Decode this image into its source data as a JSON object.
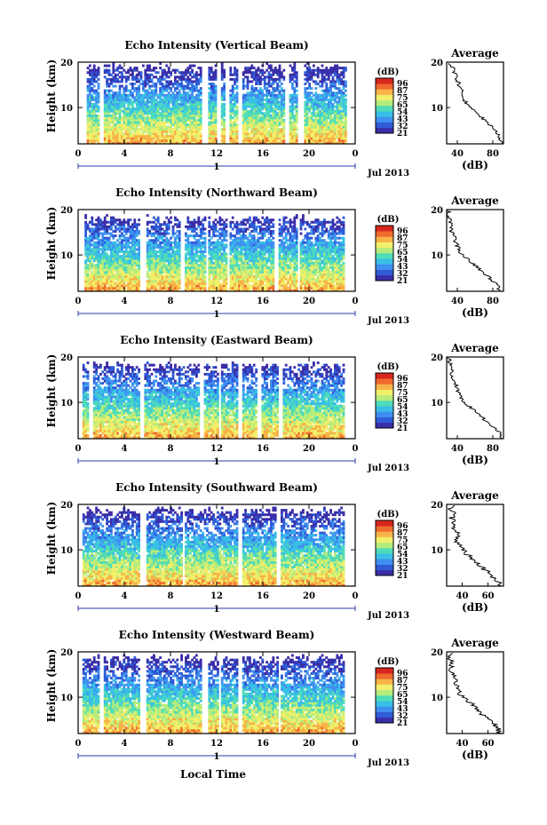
{
  "colormap": [
    "#3a2ea8",
    "#2f5bd6",
    "#3f8ff0",
    "#39bfe6",
    "#4fdcb8",
    "#b6ec7c",
    "#f2ef6a",
    "#f7b347",
    "#ef6a2e",
    "#d7261e"
  ],
  "chart_data": [
    {
      "type": "heatmap",
      "title": "Echo Intensity (Vertical Beam)",
      "ylabel": "Height (km)",
      "xlabel": "",
      "x_ticks": [
        "0",
        "4",
        "8",
        "12",
        "16",
        "20",
        "0"
      ],
      "xlim": [
        0,
        24
      ],
      "y_ticks": [
        "20",
        "10"
      ],
      "ylim": [
        2,
        20
      ],
      "date_marker": "1",
      "date_label": "Jul 2013",
      "colorbar": {
        "unit": "(dB)",
        "levels": [
          "96",
          "87",
          "75",
          "65",
          "54",
          "43",
          "32",
          "21"
        ]
      },
      "gaps": [
        [
          0,
          0.7
        ],
        [
          1.8,
          2.3
        ],
        [
          10.7,
          11.2
        ],
        [
          12.0,
          12.4
        ],
        [
          12.8,
          13.2
        ],
        [
          13.9,
          14.3
        ],
        [
          17.9,
          18.3
        ],
        [
          19.1,
          19.5
        ],
        [
          23.2,
          24
        ]
      ],
      "top": 20,
      "profile": {
        "title": "Average",
        "xlabel": "(dB)",
        "x_ticks": [
          "40",
          "80"
        ],
        "y_ticks": [
          "20",
          "10"
        ],
        "xlim": [
          28,
          92
        ],
        "ylim": [
          2,
          20
        ],
        "heights": [
          2,
          3,
          4,
          5,
          6,
          7,
          8,
          9,
          10,
          11,
          12,
          13,
          14,
          15,
          16,
          17,
          18,
          19,
          20
        ],
        "values": [
          90,
          88,
          86,
          82,
          78,
          72,
          66,
          60,
          54,
          50,
          47,
          46,
          44,
          42,
          40,
          38,
          36,
          34,
          32
        ]
      }
    },
    {
      "type": "heatmap",
      "title": "Echo Intensity (Northward Beam)",
      "ylabel": "Height (km)",
      "xlabel": "",
      "x_ticks": [
        "0",
        "4",
        "8",
        "12",
        "16",
        "20",
        "0"
      ],
      "xlim": [
        0,
        24
      ],
      "y_ticks": [
        "20",
        "10"
      ],
      "ylim": [
        2,
        20
      ],
      "date_marker": "1",
      "date_label": "Jul 2013",
      "colorbar": {
        "unit": "(dB)",
        "levels": [
          "96",
          "87",
          "75",
          "65",
          "54",
          "43",
          "32",
          "21"
        ]
      },
      "gaps": [
        [
          0,
          0.5
        ],
        [
          5.3,
          5.9
        ],
        [
          8.9,
          9.2
        ],
        [
          11.0,
          11.3
        ],
        [
          12.9,
          13.2
        ],
        [
          17.0,
          17.3
        ],
        [
          19.0,
          19.2
        ],
        [
          23.0,
          24
        ]
      ],
      "top": 19,
      "profile": {
        "title": "Average",
        "xlabel": "(dB)",
        "x_ticks": [
          "40",
          "80"
        ],
        "y_ticks": [
          "20",
          "10"
        ],
        "xlim": [
          28,
          92
        ],
        "ylim": [
          2,
          20
        ],
        "heights": [
          2,
          3,
          4,
          5,
          6,
          7,
          8,
          9,
          10,
          11,
          12,
          13,
          14,
          15,
          16,
          17,
          18,
          19,
          20
        ],
        "values": [
          88,
          86,
          82,
          76,
          70,
          64,
          58,
          52,
          46,
          42,
          40,
          38,
          36,
          34,
          33,
          32,
          31,
          30,
          30
        ]
      }
    },
    {
      "type": "heatmap",
      "title": "Echo Intensity (Eastward Beam)",
      "ylabel": "Height (km)",
      "xlabel": "",
      "x_ticks": [
        "0",
        "4",
        "8",
        "12",
        "16",
        "20",
        "0"
      ],
      "xlim": [
        0,
        24
      ],
      "y_ticks": [
        "20",
        "10"
      ],
      "ylim": [
        2,
        20
      ],
      "date_marker": "1",
      "date_label": "Jul 2013",
      "colorbar": {
        "unit": "(dB)",
        "levels": [
          "96",
          "87",
          "75",
          "65",
          "54",
          "43",
          "32",
          "21"
        ]
      },
      "gaps": [
        [
          0,
          0.4
        ],
        [
          1.0,
          1.3
        ],
        [
          5.3,
          5.8
        ],
        [
          10.5,
          10.9
        ],
        [
          12.1,
          12.4
        ],
        [
          13.9,
          14.2
        ],
        [
          15.5,
          15.8
        ],
        [
          17.4,
          17.7
        ],
        [
          23.1,
          24
        ]
      ],
      "top": 19,
      "profile": {
        "title": "Average",
        "xlabel": "(dB)",
        "x_ticks": [
          "40",
          "80"
        ],
        "y_ticks": [
          "20",
          "10"
        ],
        "xlim": [
          28,
          92
        ],
        "ylim": [
          2,
          20
        ],
        "heights": [
          2,
          3,
          4,
          5,
          6,
          7,
          8,
          9,
          10,
          11,
          12,
          13,
          14,
          15,
          16,
          17,
          18,
          19,
          20
        ],
        "values": [
          90,
          88,
          84,
          78,
          72,
          66,
          60,
          54,
          48,
          44,
          42,
          40,
          38,
          36,
          34,
          33,
          32,
          31,
          30
        ]
      }
    },
    {
      "type": "heatmap",
      "title": "Echo Intensity (Southward Beam)",
      "ylabel": "Height (km)",
      "xlabel": "",
      "x_ticks": [
        "0",
        "4",
        "8",
        "12",
        "16",
        "20",
        "0"
      ],
      "xlim": [
        0,
        24
      ],
      "y_ticks": [
        "20",
        "10"
      ],
      "ylim": [
        2,
        20
      ],
      "date_marker": "1",
      "date_label": "Jul 2013",
      "colorbar": {
        "unit": "(dB)",
        "levels": [
          "96",
          "87",
          "75",
          "65",
          "54",
          "43",
          "32",
          "21"
        ]
      },
      "gaps": [
        [
          0,
          0.4
        ],
        [
          5.4,
          5.9
        ],
        [
          9.0,
          9.3
        ],
        [
          13.9,
          14.2
        ],
        [
          17.2,
          17.5
        ],
        [
          23.1,
          24
        ]
      ],
      "top": 19.5,
      "profile": {
        "title": "Average",
        "xlabel": "(dB)",
        "x_ticks": [
          "40",
          "60"
        ],
        "y_ticks": [
          "20",
          "10"
        ],
        "xlim": [
          28,
          72
        ],
        "ylim": [
          2,
          20
        ],
        "heights": [
          2,
          3,
          4,
          5,
          6,
          7,
          8,
          9,
          10,
          11,
          12,
          13,
          14,
          15,
          16,
          17,
          18,
          19,
          20
        ],
        "values": [
          70,
          68,
          64,
          60,
          56,
          52,
          48,
          44,
          40,
          38,
          36,
          38,
          35,
          33,
          34,
          32,
          33,
          31,
          32
        ]
      }
    },
    {
      "type": "heatmap",
      "title": "Echo Intensity (Westward Beam)",
      "ylabel": "Height (km)",
      "xlabel": "Local Time",
      "x_ticks": [
        "0",
        "4",
        "8",
        "12",
        "16",
        "20",
        "0"
      ],
      "xlim": [
        0,
        24
      ],
      "y_ticks": [
        "20",
        "10"
      ],
      "ylim": [
        2,
        20
      ],
      "date_marker": "1",
      "date_label": "Jul 2013",
      "colorbar": {
        "unit": "(dB)",
        "levels": [
          "96",
          "87",
          "75",
          "65",
          "54",
          "43",
          "32",
          "21"
        ]
      },
      "gaps": [
        [
          0,
          0.3
        ],
        [
          1.8,
          2.2
        ],
        [
          5.4,
          5.9
        ],
        [
          10.8,
          11.2
        ],
        [
          12.1,
          12.4
        ],
        [
          13.9,
          14.2
        ],
        [
          17.3,
          17.6
        ],
        [
          23.1,
          24
        ]
      ],
      "top": 19.5,
      "profile": {
        "title": "Average",
        "xlabel": "(dB)",
        "x_ticks": [
          "40",
          "60"
        ],
        "y_ticks": [
          "20",
          "10"
        ],
        "xlim": [
          28,
          72
        ],
        "ylim": [
          2,
          20
        ],
        "heights": [
          2,
          3,
          4,
          5,
          6,
          7,
          8,
          9,
          10,
          11,
          12,
          13,
          14,
          15,
          16,
          17,
          18,
          19,
          20
        ],
        "values": [
          70,
          68,
          65,
          61,
          57,
          53,
          49,
          45,
          41,
          38,
          37,
          35,
          34,
          33,
          32,
          32,
          31,
          31,
          30
        ]
      }
    }
  ]
}
